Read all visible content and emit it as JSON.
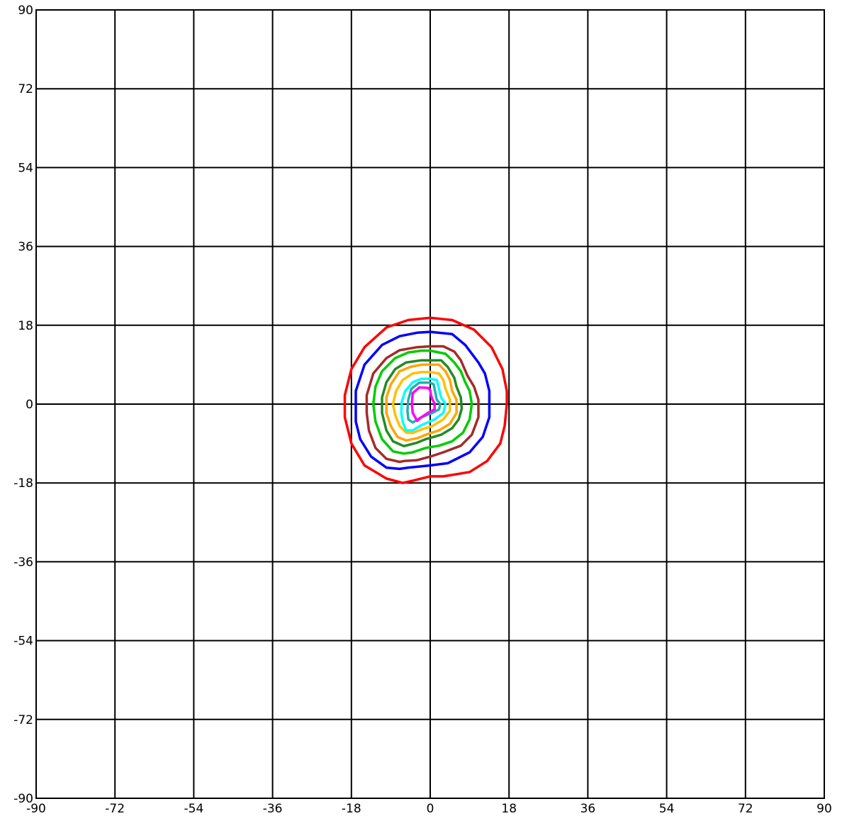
{
  "chart_data": {
    "type": "line",
    "subtype": "contour",
    "title": "",
    "xlabel": "",
    "ylabel": "",
    "xlim": [
      -90,
      90
    ],
    "ylim": [
      -90,
      90
    ],
    "grid": true,
    "legend": "none",
    "x_ticks": [
      "-90",
      "-72",
      "-54",
      "-36",
      "-18",
      "0",
      "18",
      "36",
      "54",
      "72",
      "90"
    ],
    "y_ticks": [
      "90",
      "72",
      "54",
      "36",
      "18",
      "0",
      "-18",
      "-36",
      "-54",
      "-72",
      "-90"
    ],
    "series": [
      {
        "color": "#ff0000",
        "points": [
          [
            0,
            19.7
          ],
          [
            5,
            19.2
          ],
          [
            10,
            17
          ],
          [
            14,
            13
          ],
          [
            16.5,
            8
          ],
          [
            17.5,
            3
          ],
          [
            17.5,
            0
          ],
          [
            17,
            -5
          ],
          [
            16,
            -9
          ],
          [
            13,
            -13
          ],
          [
            9,
            -15.5
          ],
          [
            3,
            -16.5
          ],
          [
            0,
            -16.5
          ],
          [
            -4,
            -17.5
          ],
          [
            -6.3,
            -18
          ],
          [
            -10,
            -17
          ],
          [
            -15,
            -14
          ],
          [
            -18,
            -9
          ],
          [
            -19.5,
            -3
          ],
          [
            -19.5,
            2
          ],
          [
            -18,
            8
          ],
          [
            -15,
            13
          ],
          [
            -10,
            17.5
          ],
          [
            -5,
            19.2
          ],
          [
            0,
            19.7
          ]
        ]
      },
      {
        "color": "#0000ff",
        "points": [
          [
            0,
            16.5
          ],
          [
            5,
            16
          ],
          [
            8,
            13.5
          ],
          [
            11,
            9.5
          ],
          [
            12.5,
            7
          ],
          [
            13.5,
            3
          ],
          [
            13.5,
            -3
          ],
          [
            12,
            -7.5
          ],
          [
            9,
            -11
          ],
          [
            4,
            -13.5
          ],
          [
            0,
            -14
          ],
          [
            -5,
            -14.5
          ],
          [
            -7,
            -14.8
          ],
          [
            -10,
            -14.5
          ],
          [
            -13.5,
            -12
          ],
          [
            -16,
            -8
          ],
          [
            -17,
            -4
          ],
          [
            -17,
            3
          ],
          [
            -15,
            9
          ],
          [
            -11,
            13.5
          ],
          [
            -7,
            15.5
          ],
          [
            -3,
            16.3
          ],
          [
            0,
            16.5
          ]
        ]
      },
      {
        "color": "#a52a2a",
        "points": [
          [
            0,
            13.2
          ],
          [
            3,
            13.2
          ],
          [
            5.5,
            12
          ],
          [
            7,
            10
          ],
          [
            8.5,
            6.5
          ],
          [
            10,
            4
          ],
          [
            11,
            1
          ],
          [
            11,
            -3
          ],
          [
            9.5,
            -7
          ],
          [
            7,
            -9.5
          ],
          [
            3,
            -11
          ],
          [
            0,
            -12
          ],
          [
            -3,
            -12.8
          ],
          [
            -6,
            -13
          ],
          [
            -7,
            -13.2
          ],
          [
            -10,
            -12.5
          ],
          [
            -12.5,
            -10
          ],
          [
            -14,
            -6
          ],
          [
            -14.5,
            -2
          ],
          [
            -14.5,
            2
          ],
          [
            -13,
            7
          ],
          [
            -10,
            10.5
          ],
          [
            -7,
            12.3
          ],
          [
            -3,
            13
          ],
          [
            0,
            13.2
          ]
        ]
      },
      {
        "color": "#00cc00",
        "points": [
          [
            0,
            12.2
          ],
          [
            3.5,
            11.5
          ],
          [
            5.5,
            9.5
          ],
          [
            7,
            7.5
          ],
          [
            8,
            5
          ],
          [
            9,
            3
          ],
          [
            9.5,
            0
          ],
          [
            9,
            -3.5
          ],
          [
            7.5,
            -6.5
          ],
          [
            5,
            -8.5
          ],
          [
            2,
            -9.5
          ],
          [
            -1,
            -10
          ],
          [
            -4,
            -11
          ],
          [
            -6,
            -11.3
          ],
          [
            -8.5,
            -10.8
          ],
          [
            -11,
            -8
          ],
          [
            -12.5,
            -4
          ],
          [
            -13,
            0
          ],
          [
            -12.5,
            4
          ],
          [
            -11,
            7.5
          ],
          [
            -8,
            10.5
          ],
          [
            -5,
            11.8
          ],
          [
            -2,
            12.2
          ],
          [
            0,
            12.2
          ]
        ]
      },
      {
        "color": "#228b22",
        "points": [
          [
            0,
            10
          ],
          [
            2.5,
            10
          ],
          [
            4,
            8.5
          ],
          [
            5.5,
            6
          ],
          [
            6,
            4
          ],
          [
            7,
            1.5
          ],
          [
            7.2,
            -1
          ],
          [
            6.5,
            -3.5
          ],
          [
            5,
            -5.5
          ],
          [
            2.5,
            -7
          ],
          [
            -1,
            -8
          ],
          [
            -3,
            -8.8
          ],
          [
            -6,
            -9.6
          ],
          [
            -8.5,
            -8.5
          ],
          [
            -10,
            -6
          ],
          [
            -11,
            -2
          ],
          [
            -11,
            1.5
          ],
          [
            -10,
            5
          ],
          [
            -8,
            8
          ],
          [
            -5.5,
            9.5
          ],
          [
            -2,
            10
          ],
          [
            0,
            10
          ]
        ]
      },
      {
        "color": "#ffa500",
        "points": [
          [
            0,
            9
          ],
          [
            2,
            9
          ],
          [
            3.5,
            7.5
          ],
          [
            4.5,
            5.5
          ],
          [
            5,
            3
          ],
          [
            6,
            1
          ],
          [
            6,
            -2
          ],
          [
            4.5,
            -4.5
          ],
          [
            2,
            -6
          ],
          [
            -1,
            -7
          ],
          [
            -3,
            -7.8
          ],
          [
            -5.5,
            -8.3
          ],
          [
            -7.5,
            -7.5
          ],
          [
            -9,
            -5
          ],
          [
            -10,
            -2
          ],
          [
            -10,
            1.5
          ],
          [
            -9,
            4.5
          ],
          [
            -7,
            7.5
          ],
          [
            -4.5,
            8.5
          ],
          [
            -2,
            9
          ],
          [
            0,
            9
          ]
        ]
      },
      {
        "color": "#ffc000",
        "points": [
          [
            0,
            7.3
          ],
          [
            2,
            7
          ],
          [
            3,
            5.5
          ],
          [
            3.5,
            3.5
          ],
          [
            4.5,
            1
          ],
          [
            4.5,
            -1.5
          ],
          [
            3,
            -3.5
          ],
          [
            0.5,
            -5
          ],
          [
            -2,
            -5.8
          ],
          [
            -4,
            -6.6
          ],
          [
            -5.5,
            -6.5
          ],
          [
            -7,
            -5
          ],
          [
            -8,
            -2.5
          ],
          [
            -8.5,
            0
          ],
          [
            -7.8,
            3
          ],
          [
            -6.3,
            5.5
          ],
          [
            -4,
            7
          ],
          [
            -2,
            7.3
          ],
          [
            0,
            7.3
          ]
        ]
      },
      {
        "color": "#00ffff",
        "points": [
          [
            0,
            5.8
          ],
          [
            1.5,
            5.5
          ],
          [
            2,
            3.5
          ],
          [
            2.5,
            1.5
          ],
          [
            3.5,
            0
          ],
          [
            3,
            -2
          ],
          [
            1,
            -3.5
          ],
          [
            -2,
            -4.8
          ],
          [
            -4,
            -6
          ],
          [
            -5.5,
            -6
          ],
          [
            -6.3,
            -4
          ],
          [
            -6.6,
            -2
          ],
          [
            -6.5,
            0.5
          ],
          [
            -5.7,
            3
          ],
          [
            -4,
            5
          ],
          [
            -2,
            5.8
          ],
          [
            0,
            5.8
          ]
        ]
      },
      {
        "color": "#20b2aa",
        "points": [
          [
            0,
            4.9
          ],
          [
            0.8,
            4.5
          ],
          [
            1.2,
            2.5
          ],
          [
            1.5,
            1
          ],
          [
            2.3,
            0
          ],
          [
            2,
            -1.2
          ],
          [
            0.5,
            -2
          ],
          [
            -2,
            -3
          ],
          [
            -4,
            -4.2
          ],
          [
            -5,
            -3.5
          ],
          [
            -5.2,
            -1.5
          ],
          [
            -5,
            1
          ],
          [
            -4.3,
            3.5
          ],
          [
            -2.5,
            4.9
          ],
          [
            0,
            4.9
          ]
        ]
      },
      {
        "color": "#ff00ff",
        "points": [
          [
            0,
            3.2
          ],
          [
            -0.5,
            3.7
          ],
          [
            -2.5,
            3.8
          ],
          [
            -4,
            2.5
          ],
          [
            -4.2,
            0
          ],
          [
            -4,
            -2
          ],
          [
            -3,
            -3.8
          ],
          [
            -2,
            -3
          ],
          [
            -0.5,
            -2
          ],
          [
            1,
            -1.2
          ],
          [
            1,
            0.2
          ],
          [
            0.5,
            1
          ],
          [
            0.2,
            2
          ],
          [
            0,
            3.2
          ]
        ]
      }
    ]
  }
}
